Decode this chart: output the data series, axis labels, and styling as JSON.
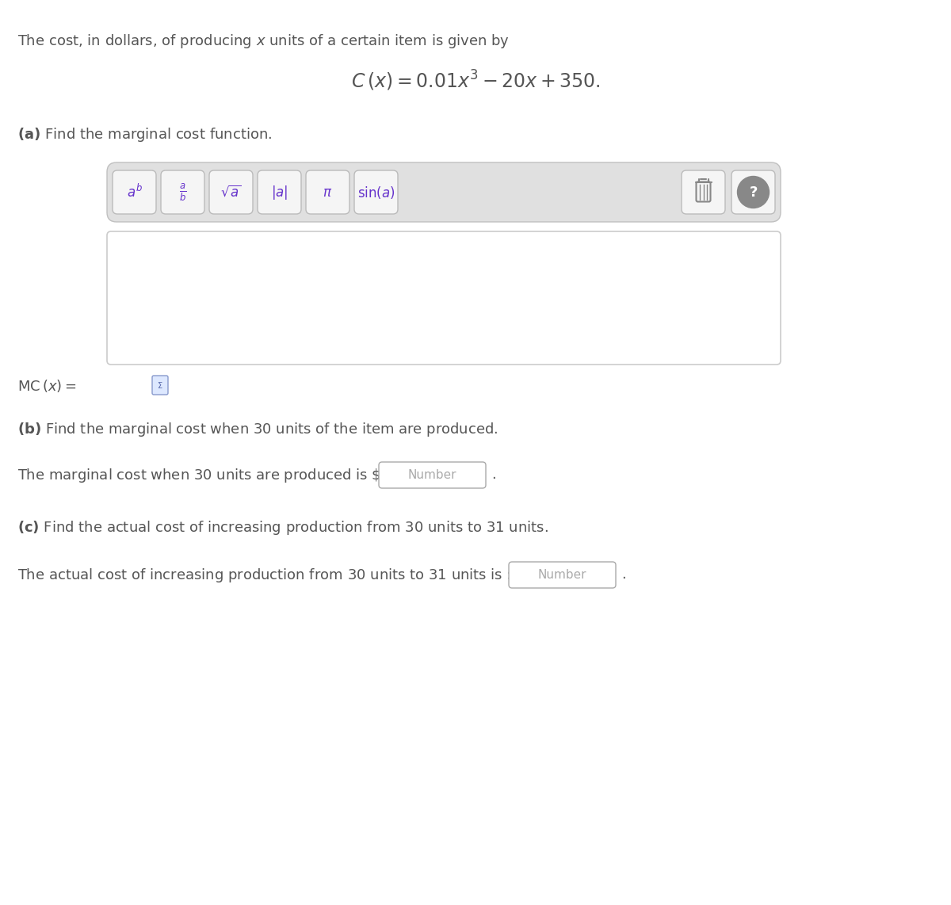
{
  "bg_color": "#ffffff",
  "gray_text": "#555555",
  "blue_purple": "#6633cc",
  "toolbar_bg": "#e0e0e0",
  "toolbar_edge": "#c0c0c0",
  "btn_bg": "#f5f5f5",
  "btn_edge": "#bbbbbb",
  "input_bg": "#ffffff",
  "input_edge": "#cccccc",
  "number_color": "#aaaaaa",
  "icon_color": "#888888",
  "icon_circle_bg": "#888888"
}
